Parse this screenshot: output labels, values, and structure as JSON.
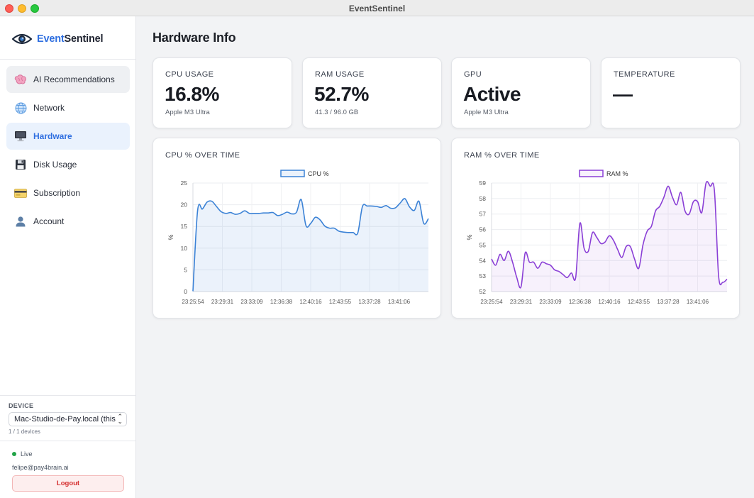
{
  "window": {
    "title": "EventSentinel"
  },
  "brand": {
    "accent": "Event",
    "rest": "Sentinel"
  },
  "sidebar": {
    "items": [
      {
        "label": "AI Recommendations",
        "icon": "brain-icon",
        "state": "hover"
      },
      {
        "label": "Network",
        "icon": "globe-icon",
        "state": ""
      },
      {
        "label": "Hardware",
        "icon": "monitor-icon",
        "state": "active"
      },
      {
        "label": "Disk Usage",
        "icon": "floppy-disk-icon",
        "state": ""
      },
      {
        "label": "Subscription",
        "icon": "credit-card-icon",
        "state": ""
      },
      {
        "label": "Account",
        "icon": "user-icon",
        "state": ""
      }
    ],
    "device_label": "DEVICE",
    "device_value": "Mac-Studio-de-Pay.local (this",
    "device_count": "1 / 1 devices",
    "status": "Live",
    "email": "felipe@pay4brain.ai",
    "logout": "Logout"
  },
  "page": {
    "title": "Hardware Info"
  },
  "stats": [
    {
      "label": "CPU USAGE",
      "value": "16.8%",
      "sub": "Apple M3 Ultra"
    },
    {
      "label": "RAM USAGE",
      "value": "52.7%",
      "sub": "41.3 / 96.0 GB"
    },
    {
      "label": "GPU",
      "value": "Active",
      "sub": "Apple M3 Ultra"
    },
    {
      "label": "TEMPERATURE",
      "value": "—",
      "sub": ""
    }
  ],
  "colors": {
    "accent": "#2f6fe0",
    "cpu_line": "#3b82d6",
    "ram_line": "#8a3fd6",
    "live": "#22a447",
    "logout": "#d42b2b"
  },
  "chart_data": [
    {
      "type": "line",
      "title": "CPU % OVER TIME",
      "ylabel": "%",
      "ylim": [
        0,
        25
      ],
      "yticks": [
        0,
        5,
        10,
        15,
        20,
        25
      ],
      "xtick_labels": [
        "23:25:54",
        "23:29:31",
        "23:33:09",
        "12:36:38",
        "12:40:16",
        "12:43:55",
        "13:37:28",
        "13:41:06"
      ],
      "grid": true,
      "legend": "top-center",
      "series": [
        {
          "name": "CPU %",
          "values": [
            0.1,
            18.7,
            19.0,
            20.6,
            20.8,
            19.6,
            18.4,
            18.0,
            18.2,
            17.8,
            18.0,
            18.6,
            18.0,
            18.0,
            18.0,
            18.1,
            18.1,
            18.2,
            17.5,
            17.8,
            18.3,
            17.9,
            18.3,
            21.2,
            15.2,
            15.7,
            17.1,
            16.5,
            15.1,
            14.6,
            14.6,
            13.9,
            13.7,
            13.6,
            13.6,
            13.5,
            19.6,
            19.7,
            19.7,
            19.6,
            19.4,
            19.8,
            19.2,
            19.3,
            20.4,
            21.4,
            19.5,
            18.7,
            20.8,
            15.7,
            16.8
          ]
        }
      ]
    },
    {
      "type": "line",
      "title": "RAM % OVER TIME",
      "ylabel": "%",
      "ylim": [
        52,
        59
      ],
      "yticks": [
        52,
        53,
        54,
        55,
        56,
        57,
        58,
        59
      ],
      "xtick_labels": [
        "23:25:54",
        "23:29:31",
        "23:33:09",
        "12:36:38",
        "12:40:16",
        "12:43:55",
        "13:37:28",
        "13:41:06"
      ],
      "grid": true,
      "legend": "top-center",
      "series": [
        {
          "name": "RAM %",
          "values": [
            54.1,
            53.7,
            54.4,
            54.0,
            54.6,
            53.9,
            52.9,
            52.3,
            54.5,
            53.9,
            53.9,
            53.5,
            53.9,
            53.8,
            53.7,
            53.4,
            53.3,
            53.1,
            52.9,
            53.2,
            52.9,
            56.4,
            54.8,
            54.6,
            55.8,
            55.5,
            55.1,
            55.2,
            55.6,
            55.3,
            54.7,
            54.2,
            54.9,
            54.9,
            54.1,
            53.5,
            55.0,
            55.9,
            56.2,
            57.2,
            57.5,
            58.1,
            58.8,
            58.1,
            57.6,
            58.4,
            57.2,
            57.0,
            57.8,
            57.8,
            57.1,
            59.0,
            58.8,
            58.5,
            53.0,
            52.6,
            52.8
          ]
        }
      ]
    }
  ]
}
